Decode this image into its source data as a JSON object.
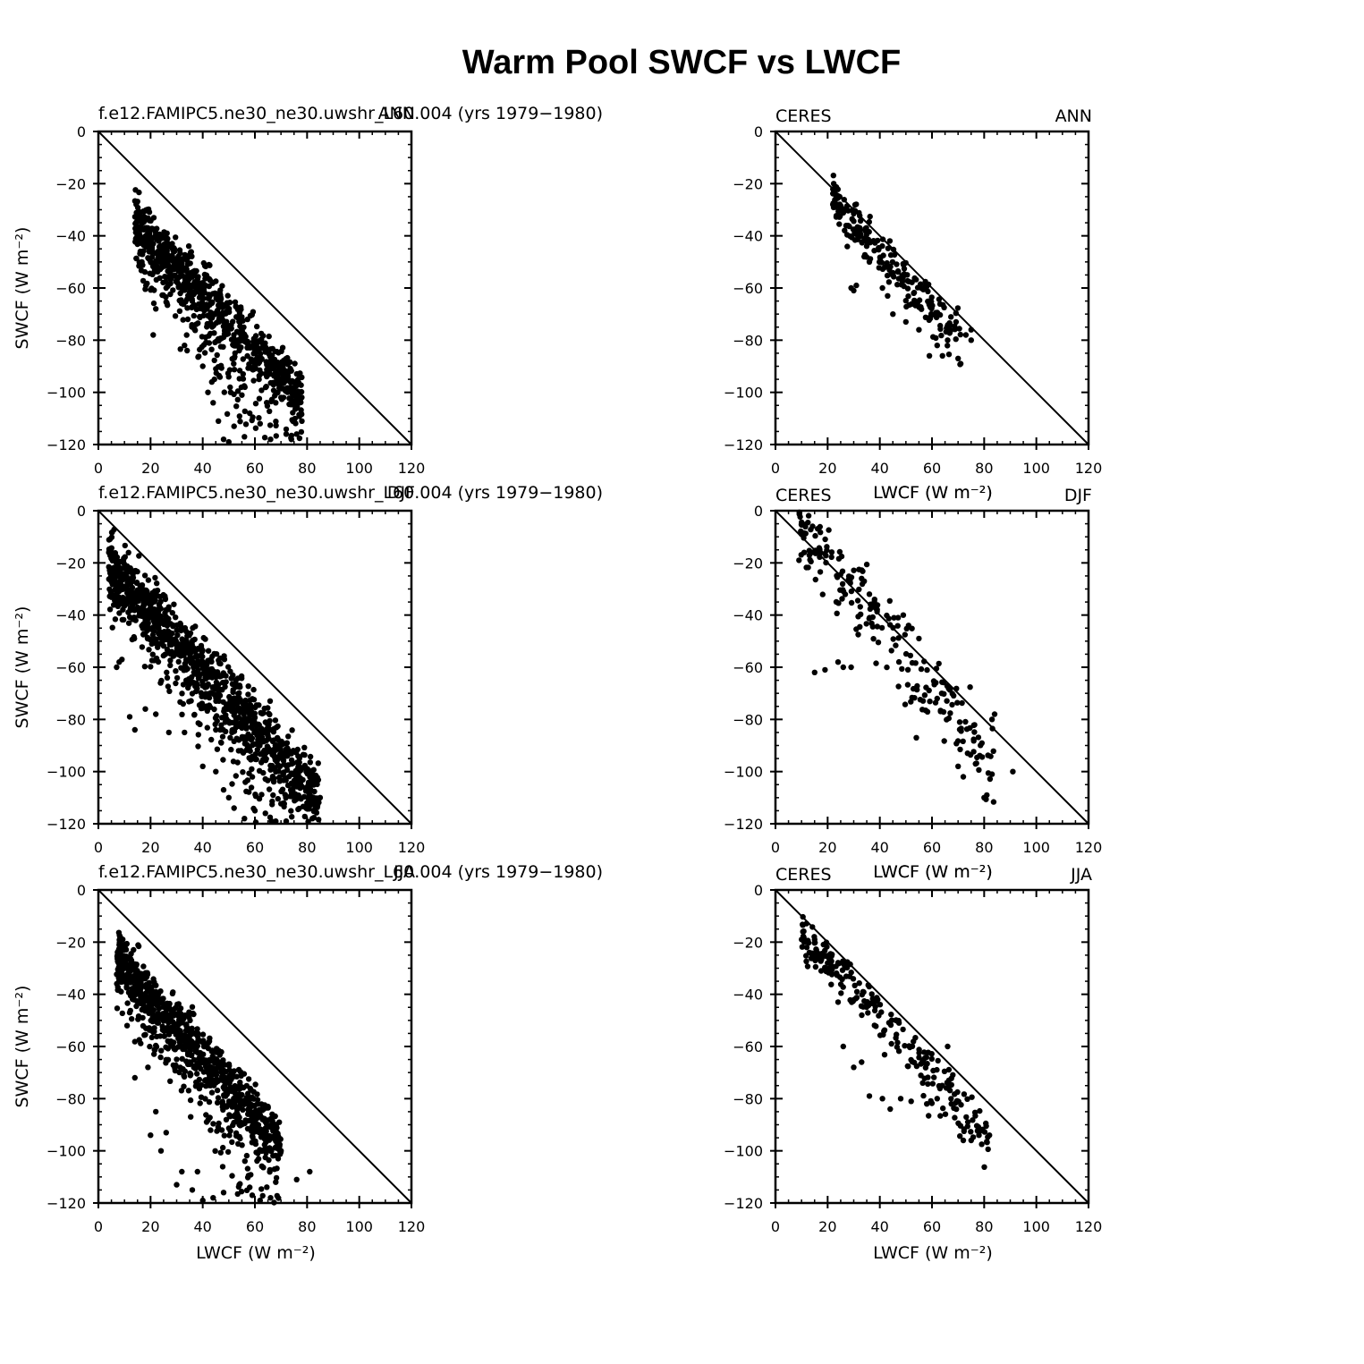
{
  "figure_title": "Warm Pool SWCF vs LWCF",
  "chart_data": [
    {
      "type": "scatter",
      "panel": "model-ann",
      "left_title": "f.e12.FAMIPC5.ne30_ne30.uwshr_L60.004 (yrs 1979−1980)",
      "center_title": "",
      "right_title": "ANN",
      "ylabel": "SWCF (W m⁻²)",
      "xlabel": "",
      "xlim": [
        0,
        120
      ],
      "ylim": [
        -120,
        0
      ],
      "xticks": [
        "0",
        "20",
        "40",
        "60",
        "80",
        "100",
        "120"
      ],
      "yticks": [
        "0",
        "−20",
        "−40",
        "−60",
        "−80",
        "−100",
        "−120"
      ],
      "ref_line": "one-to-one",
      "cloud": {
        "n": 900,
        "seed": 11,
        "x_min": 14,
        "x_max": 78,
        "y_intercept": -20,
        "slope": -1.05,
        "spread": 5,
        "outlier_frac": 0.32,
        "outlier_depth": 45
      },
      "points": [
        [
          15,
          -31
        ],
        [
          16,
          -33
        ],
        [
          17,
          -35
        ],
        [
          18,
          -37
        ],
        [
          19,
          -39
        ],
        [
          21,
          -78
        ],
        [
          22,
          -68
        ],
        [
          26,
          -60
        ],
        [
          33,
          -82
        ],
        [
          34,
          -84
        ],
        [
          40,
          -90
        ],
        [
          42,
          -100
        ],
        [
          44,
          -104
        ],
        [
          46,
          -111
        ],
        [
          48,
          -118
        ],
        [
          50,
          -119
        ],
        [
          52,
          -113
        ],
        [
          56,
          -117
        ],
        [
          58,
          -108
        ],
        [
          62,
          -112
        ],
        [
          66,
          -118
        ],
        [
          68,
          -104
        ],
        [
          70,
          -102
        ],
        [
          72,
          -116
        ],
        [
          74,
          -118
        ],
        [
          76,
          -116
        ],
        [
          78,
          -111
        ],
        [
          70,
          -90
        ],
        [
          68,
          -92
        ]
      ]
    },
    {
      "type": "scatter",
      "panel": "ceres-ann",
      "left_title": "CERES",
      "center_title": "",
      "right_title": "ANN",
      "ylabel": "",
      "xlabel": "LWCF (W m⁻²)",
      "xlim": [
        0,
        120
      ],
      "ylim": [
        -120,
        0
      ],
      "xticks": [
        "0",
        "20",
        "40",
        "60",
        "80",
        "100",
        "120"
      ],
      "yticks": [
        "0",
        "−20",
        "−40",
        "−60",
        "−80",
        "−100",
        "−120"
      ],
      "ref_line": "one-to-one",
      "cloud": {
        "n": 220,
        "seed": 23,
        "x_min": 22,
        "x_max": 72,
        "y_intercept": -2,
        "slope": -1.08,
        "spread": 4,
        "outlier_frac": 0.25,
        "outlier_depth": 14
      },
      "points": [
        [
          22,
          -28
        ],
        [
          23,
          -29
        ],
        [
          29,
          -60
        ],
        [
          30,
          -61
        ],
        [
          31,
          -59
        ],
        [
          34,
          -48
        ],
        [
          36,
          -50
        ],
        [
          41,
          -60
        ],
        [
          43,
          -63
        ],
        [
          45,
          -70
        ],
        [
          50,
          -73
        ],
        [
          55,
          -76
        ],
        [
          59,
          -86
        ],
        [
          62,
          -82
        ],
        [
          64,
          -86
        ],
        [
          66,
          -80
        ],
        [
          70,
          -87
        ],
        [
          71,
          -89
        ],
        [
          73,
          -78
        ],
        [
          75,
          -76
        ],
        [
          75,
          -80
        ]
      ]
    },
    {
      "type": "scatter",
      "panel": "model-djf",
      "left_title": "f.e12.FAMIPC5.ne30_ne30.uwshr_L60.004 (yrs 1979−1980)",
      "center_title": "",
      "right_title": "DJF",
      "ylabel": "SWCF (W m⁻²)",
      "xlabel": "",
      "xlim": [
        0,
        120
      ],
      "ylim": [
        -120,
        0
      ],
      "xticks": [
        "0",
        "20",
        "40",
        "60",
        "80",
        "100",
        "120"
      ],
      "yticks": [
        "0",
        "−20",
        "−40",
        "−60",
        "−80",
        "−100",
        "−120"
      ],
      "ref_line": "one-to-one",
      "cloud": {
        "n": 1200,
        "seed": 37,
        "x_min": 4,
        "x_max": 85,
        "y_intercept": -16,
        "slope": -1.1,
        "spread": 6,
        "outlier_frac": 0.3,
        "outlier_depth": 35
      },
      "points": [
        [
          4,
          -16
        ],
        [
          5,
          -17
        ],
        [
          6,
          -19
        ],
        [
          7,
          -60
        ],
        [
          8,
          -58
        ],
        [
          9,
          -57
        ],
        [
          12,
          -79
        ],
        [
          14,
          -84
        ],
        [
          18,
          -76
        ],
        [
          22,
          -78
        ],
        [
          27,
          -85
        ],
        [
          33,
          -85
        ],
        [
          40,
          -98
        ],
        [
          45,
          -100
        ],
        [
          48,
          -107
        ],
        [
          50,
          -110
        ],
        [
          52,
          -114
        ],
        [
          56,
          -118
        ],
        [
          60,
          -115
        ],
        [
          64,
          -116
        ],
        [
          68,
          -119
        ],
        [
          72,
          -119
        ],
        [
          80,
          -112
        ],
        [
          82,
          -118
        ],
        [
          84,
          -113
        ],
        [
          85,
          -110
        ],
        [
          82,
          -105
        ]
      ]
    },
    {
      "type": "scatter",
      "panel": "ceres-djf",
      "left_title": "CERES",
      "center_title": "LWCF (W m⁻²)",
      "right_title": "DJF",
      "ylabel": "",
      "xlabel": "LWCF (W m⁻²)",
      "xlim": [
        0,
        120
      ],
      "ylim": [
        -120,
        0
      ],
      "xticks": [
        "0",
        "20",
        "40",
        "60",
        "80",
        "100",
        "120"
      ],
      "yticks": [
        "0",
        "−20",
        "−40",
        "−60",
        "−80",
        "−100",
        "−120"
      ],
      "ref_line": "one-to-one",
      "cloud": {
        "n": 210,
        "seed": 51,
        "x_min": 9,
        "x_max": 84,
        "y_intercept": 4,
        "slope": -1.2,
        "spread": 7,
        "outlier_frac": 0.2,
        "outlier_depth": 16
      },
      "points": [
        [
          9,
          -19
        ],
        [
          11,
          -16
        ],
        [
          13,
          -17
        ],
        [
          15,
          -62
        ],
        [
          19,
          -61
        ],
        [
          24,
          -58
        ],
        [
          26,
          -60
        ],
        [
          29,
          -60
        ],
        [
          33,
          -26
        ],
        [
          34,
          -27
        ],
        [
          36,
          -32
        ],
        [
          38,
          -34
        ],
        [
          47,
          -41
        ],
        [
          49,
          -40
        ],
        [
          51,
          -44
        ],
        [
          54,
          -87
        ],
        [
          55,
          -49
        ],
        [
          62,
          -72
        ],
        [
          70,
          -98
        ],
        [
          72,
          -102
        ],
        [
          80,
          -110
        ],
        [
          81,
          -109
        ],
        [
          83,
          -101
        ],
        [
          91,
          -100
        ],
        [
          84,
          -78
        ],
        [
          83,
          -80
        ]
      ]
    },
    {
      "type": "scatter",
      "panel": "model-jja",
      "left_title": "f.e12.FAMIPC5.ne30_ne30.uwshr_L60.004 (yrs 1979−1980)",
      "center_title": "",
      "right_title": "JJA",
      "ylabel": "SWCF (W m⁻²)",
      "xlabel": "LWCF (W m⁻²)",
      "xlim": [
        0,
        120
      ],
      "ylim": [
        -120,
        0
      ],
      "xticks": [
        "0",
        "20",
        "40",
        "60",
        "80",
        "100",
        "120"
      ],
      "yticks": [
        "0",
        "−20",
        "−40",
        "−60",
        "−80",
        "−100",
        "−120"
      ],
      "ref_line": "one-to-one",
      "cloud": {
        "n": 950,
        "seed": 67,
        "x_min": 7,
        "x_max": 70,
        "y_intercept": -17,
        "slope": -1.15,
        "spread": 5,
        "outlier_frac": 0.3,
        "outlier_depth": 40
      },
      "points": [
        [
          8,
          -21
        ],
        [
          9,
          -23
        ],
        [
          11,
          -52
        ],
        [
          12,
          -47
        ],
        [
          14,
          -72
        ],
        [
          17,
          -49
        ],
        [
          19,
          -68
        ],
        [
          20,
          -94
        ],
        [
          22,
          -85
        ],
        [
          24,
          -100
        ],
        [
          26,
          -93
        ],
        [
          30,
          -113
        ],
        [
          32,
          -108
        ],
        [
          36,
          -115
        ],
        [
          38,
          -108
        ],
        [
          40,
          -119
        ],
        [
          44,
          -118
        ],
        [
          48,
          -116
        ],
        [
          54,
          -113
        ],
        [
          58,
          -114
        ],
        [
          62,
          -119
        ],
        [
          66,
          -118
        ],
        [
          68,
          -112
        ],
        [
          76,
          -111
        ],
        [
          81,
          -108
        ],
        [
          70,
          -100
        ]
      ]
    },
    {
      "type": "scatter",
      "panel": "ceres-jja",
      "left_title": "CERES",
      "center_title": "LWCF (W m⁻²)",
      "right_title": "JJA",
      "ylabel": "",
      "xlabel": "LWCF (W m⁻²)",
      "xlim": [
        0,
        120
      ],
      "ylim": [
        -120,
        0
      ],
      "xticks": [
        "0",
        "20",
        "40",
        "60",
        "80",
        "100",
        "120"
      ],
      "yticks": [
        "0",
        "−20",
        "−40",
        "−60",
        "−80",
        "−100",
        "−120"
      ],
      "ref_line": "one-to-one",
      "cloud": {
        "n": 240,
        "seed": 83,
        "x_min": 10,
        "x_max": 82,
        "y_intercept": -5,
        "slope": -1.08,
        "spread": 4,
        "outlier_frac": 0.25,
        "outlier_depth": 15
      },
      "points": [
        [
          10,
          -19
        ],
        [
          11,
          -20
        ],
        [
          12,
          -22
        ],
        [
          13,
          -24
        ],
        [
          15,
          -19
        ],
        [
          20,
          -28
        ],
        [
          24,
          -43
        ],
        [
          26,
          -60
        ],
        [
          30,
          -68
        ],
        [
          33,
          -66
        ],
        [
          36,
          -79
        ],
        [
          41,
          -80
        ],
        [
          44,
          -84
        ],
        [
          48,
          -80
        ],
        [
          52,
          -81
        ],
        [
          58,
          -82
        ],
        [
          62,
          -80
        ],
        [
          66,
          -60
        ],
        [
          72,
          -96
        ],
        [
          75,
          -96
        ],
        [
          78,
          -94
        ],
        [
          82,
          -94
        ]
      ]
    }
  ]
}
